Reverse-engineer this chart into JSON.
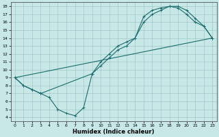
{
  "xlabel": "Humidex (Indice chaleur)",
  "bg_color": "#c8e8e8",
  "grid_color": "#a0c8c8",
  "line_color": "#1a6b6b",
  "xlim": [
    -0.5,
    23.5
  ],
  "ylim": [
    3.5,
    18.5
  ],
  "xticks": [
    0,
    1,
    2,
    3,
    4,
    5,
    6,
    7,
    8,
    9,
    10,
    11,
    12,
    13,
    14,
    15,
    16,
    17,
    18,
    19,
    20,
    21,
    22,
    23
  ],
  "yticks": [
    4,
    5,
    6,
    7,
    8,
    9,
    10,
    11,
    12,
    13,
    14,
    15,
    16,
    17,
    18
  ],
  "line1_x": [
    0,
    1,
    2,
    3,
    4,
    5,
    6,
    7,
    8,
    9,
    10,
    11,
    12,
    13,
    14,
    15,
    16,
    17,
    18,
    19,
    20,
    21,
    22,
    23
  ],
  "line1_y": [
    9,
    8,
    7.5,
    7,
    6.5,
    5,
    4.5,
    4.2,
    5.2,
    9.5,
    11,
    12,
    13,
    13.5,
    14,
    16.7,
    17.5,
    17.8,
    18,
    17.8,
    17,
    16,
    15.5,
    14
  ],
  "line2_x": [
    0,
    1,
    2,
    3,
    9,
    10,
    11,
    12,
    13,
    14,
    15,
    16,
    17,
    18,
    19,
    20,
    21,
    22,
    23
  ],
  "line2_y": [
    9,
    8,
    7.5,
    7,
    9.5,
    10.5,
    11.5,
    12.5,
    13,
    14,
    16,
    17,
    17.5,
    18,
    18,
    17.5,
    16.5,
    15.5,
    14
  ],
  "line3_x": [
    0,
    23
  ],
  "line3_y": [
    9,
    14
  ]
}
